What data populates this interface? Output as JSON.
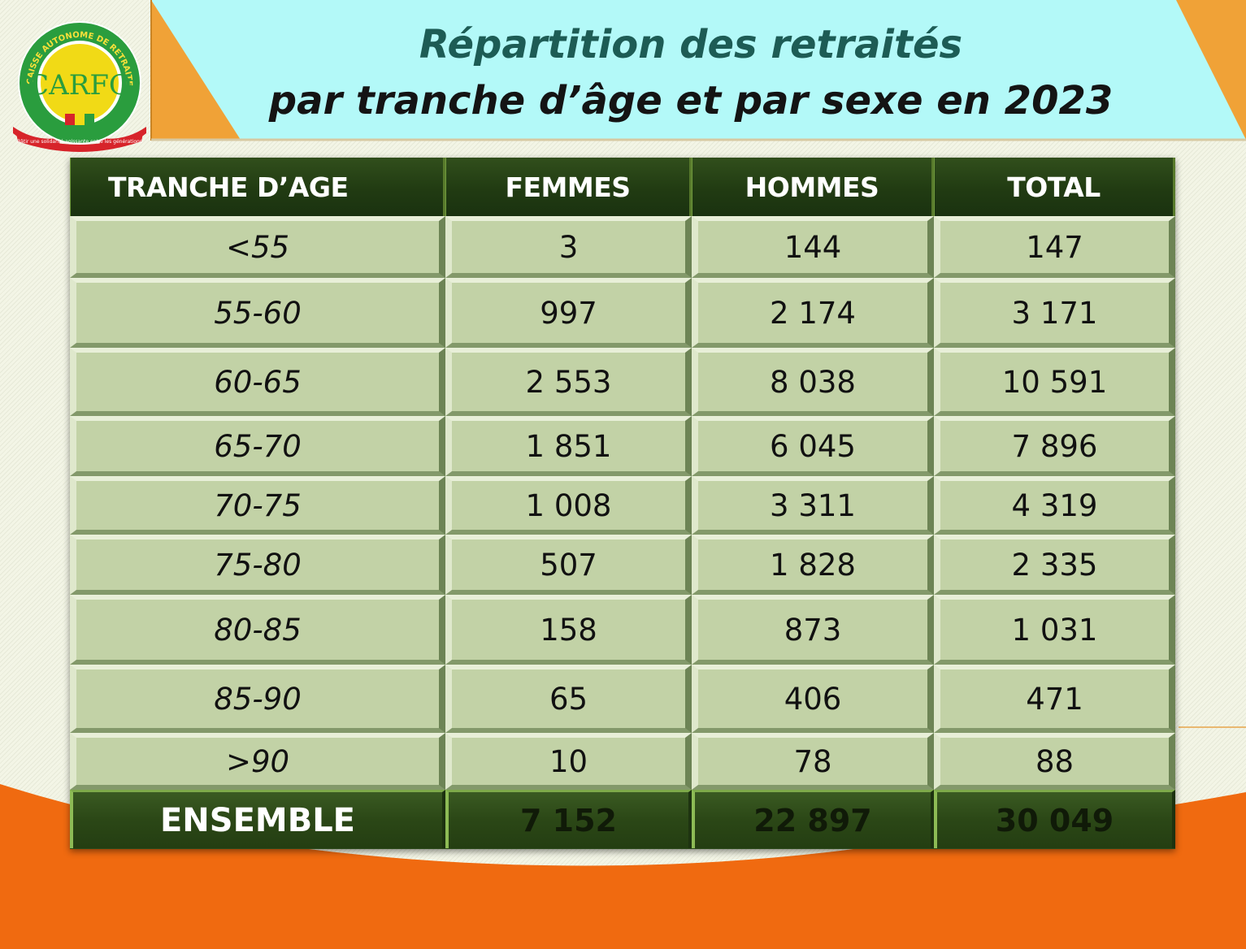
{
  "title": {
    "line1": "Répartition des retraités",
    "line2": "par tranche d’âge et par sexe en 2023"
  },
  "logo": {
    "acronym": "CARFO",
    "ring_text": "CAISSE AUTONOME DE RETRAITE DES FONCTIONNAIRES",
    "motto": "Bâtir une solidarité agissante entre les générations"
  },
  "table": {
    "headers": [
      "TRANCHE D’AGE",
      "FEMMES",
      "HOMMES",
      "TOTAL"
    ],
    "rows": [
      [
        "<55",
        "3",
        "144",
        "147"
      ],
      [
        "55-60",
        "997",
        "2 174",
        "3 171"
      ],
      [
        "60-65",
        "2 553",
        "8 038",
        "10 591"
      ],
      [
        "65-70",
        "1 851",
        "6 045",
        "7 896"
      ],
      [
        "70-75",
        "1 008",
        "3 311",
        "4 319"
      ],
      [
        "75-80",
        "507",
        "1 828",
        "2 335"
      ],
      [
        "80-85",
        "158",
        "873",
        "1 031"
      ],
      [
        "85-90",
        "65",
        "406",
        "471"
      ],
      [
        ">90",
        "10",
        "78",
        "88"
      ]
    ],
    "total": [
      "ENSEMBLE",
      "7 152",
      "22 897",
      "30 049"
    ]
  },
  "colors": {
    "header_fill": "#213b12",
    "cell_fill": "#c2d2a6",
    "title_teal": "#1d5c55",
    "band_cyan": "#b3f9f8",
    "accent_orange": "#f16a0e",
    "accent_gold": "#f0a237"
  }
}
